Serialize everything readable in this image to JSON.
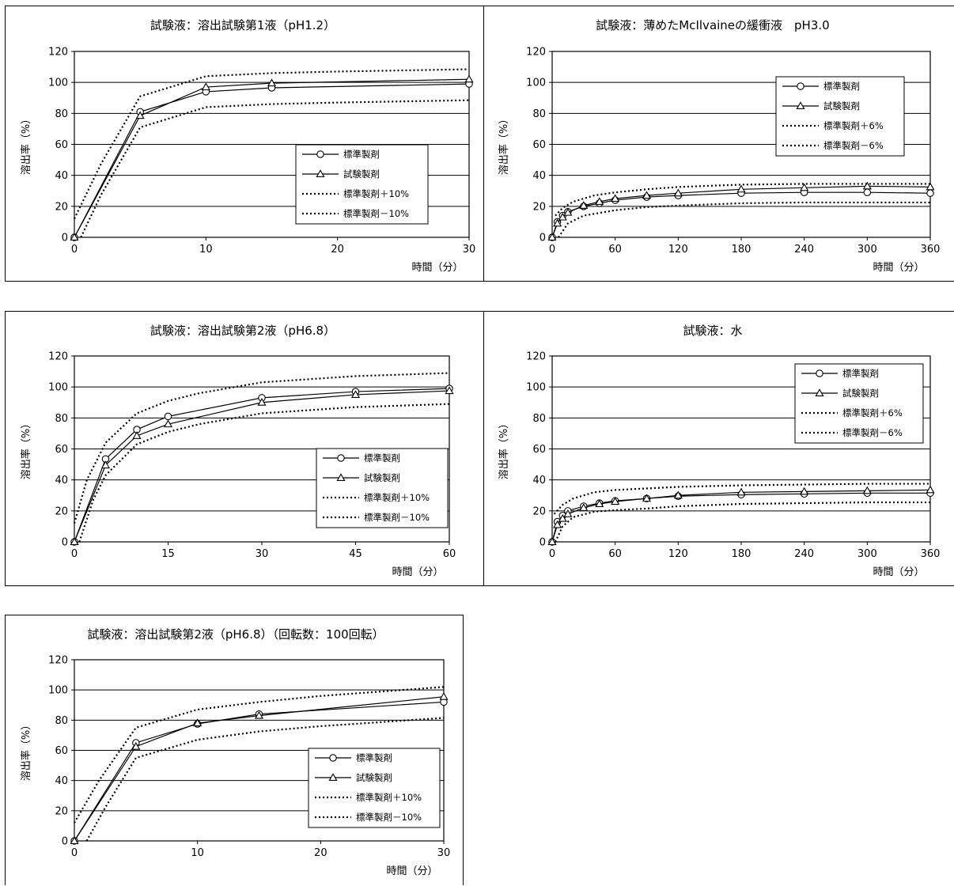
{
  "chart_data": [
    {
      "type": "line",
      "title": "試験液：溶出試験第1液（pH1.2）",
      "xlabel": "時間（分）",
      "ylabel": "溶出率（%）",
      "xlim": [
        0,
        30
      ],
      "ylim": [
        0,
        120
      ],
      "xticks": [
        0,
        10,
        20,
        30
      ],
      "yticks": [
        0,
        20,
        40,
        60,
        80,
        100,
        120
      ],
      "legend_position": "bottom-right",
      "grid": true,
      "series": [
        {
          "name": "標準製剤",
          "marker": "circle",
          "style": "solid",
          "x": [
            0,
            5,
            10,
            15,
            30
          ],
          "y": [
            0,
            81,
            94,
            96.5,
            99
          ]
        },
        {
          "name": "試験製剤",
          "marker": "triangle",
          "style": "solid",
          "x": [
            0,
            5,
            10,
            15,
            30
          ],
          "y": [
            0,
            78.5,
            97,
            99.5,
            102
          ]
        },
        {
          "name": "標準製剤＋10%",
          "marker": "none",
          "style": "dotted",
          "x": [
            0,
            2,
            5,
            10,
            15,
            20,
            30
          ],
          "y": [
            12,
            47,
            91,
            104,
            106,
            107,
            108.5
          ]
        },
        {
          "name": "標準製剤－10%",
          "marker": "none",
          "style": "dotted",
          "x": [
            0.5,
            2,
            5,
            10,
            15,
            20,
            30
          ],
          "y": [
            0,
            27,
            71,
            84,
            86,
            87,
            88.5
          ]
        }
      ]
    },
    {
      "type": "line",
      "title": "試験液：薄めたMcIlvaineの緩衝液　pH3.0",
      "xlabel": "時間（分）",
      "ylabel": "溶出率（%）",
      "xlim": [
        0,
        360
      ],
      "ylim": [
        0,
        120
      ],
      "xticks": [
        0,
        60,
        120,
        180,
        240,
        300,
        360
      ],
      "yticks": [
        0,
        20,
        40,
        60,
        80,
        100,
        120
      ],
      "legend_position": "top-right",
      "grid": true,
      "series": [
        {
          "name": "標準製剤",
          "marker": "circle",
          "style": "solid",
          "x": [
            0,
            5,
            10,
            15,
            30,
            45,
            60,
            90,
            120,
            180,
            240,
            300,
            360
          ],
          "y": [
            0,
            10,
            14,
            16.5,
            20,
            22,
            24,
            26,
            27,
            28.5,
            29,
            29,
            28.5
          ]
        },
        {
          "name": "試験製剤",
          "marker": "triangle",
          "style": "solid",
          "x": [
            0,
            5,
            10,
            15,
            30,
            45,
            60,
            90,
            120,
            180,
            240,
            300,
            360
          ],
          "y": [
            0,
            9,
            13,
            16,
            20.5,
            23,
            25,
            27,
            28.5,
            31,
            32,
            33,
            32.5
          ]
        },
        {
          "name": "標準製剤＋6%",
          "marker": "none",
          "style": "dotted",
          "x": [
            3,
            10,
            20,
            40,
            60,
            90,
            120,
            180,
            240,
            300,
            360
          ],
          "y": [
            14,
            19,
            23,
            27,
            29,
            31,
            32.5,
            34,
            34.5,
            34.5,
            34.5
          ]
        },
        {
          "name": "標準製剤－6%",
          "marker": "none",
          "style": "dotted",
          "x": [
            6,
            15,
            30,
            60,
            90,
            120,
            180,
            240,
            300,
            360
          ],
          "y": [
            0,
            9,
            14,
            17.5,
            19.5,
            20.5,
            22,
            22.5,
            22.5,
            22.5
          ]
        }
      ]
    },
    {
      "type": "line",
      "title": "試験液：溶出試験第2液（pH6.8）",
      "xlabel": "時間（分）",
      "ylabel": "溶出率（%）",
      "xlim": [
        0,
        60
      ],
      "ylim": [
        0,
        120
      ],
      "xticks": [
        0,
        15,
        30,
        45,
        60
      ],
      "yticks": [
        0,
        20,
        40,
        60,
        80,
        100,
        120
      ],
      "legend_position": "bottom-right",
      "grid": true,
      "series": [
        {
          "name": "標準製剤",
          "marker": "circle",
          "style": "solid",
          "x": [
            0,
            5,
            10,
            15,
            30,
            45,
            60
          ],
          "y": [
            0,
            53.5,
            72.5,
            81,
            93,
            97,
            99
          ]
        },
        {
          "name": "試験製剤",
          "marker": "triangle",
          "style": "solid",
          "x": [
            0,
            5,
            10,
            15,
            30,
            45,
            60
          ],
          "y": [
            0,
            49.5,
            68.5,
            76,
            90,
            95,
            97.5
          ]
        },
        {
          "name": "標準製剤＋10%",
          "marker": "none",
          "style": "dotted",
          "x": [
            0,
            2,
            5,
            10,
            15,
            20,
            30,
            45,
            60
          ],
          "y": [
            12,
            40,
            64,
            83,
            91,
            96,
            103,
            107,
            109
          ]
        },
        {
          "name": "標準製剤－10%",
          "marker": "none",
          "style": "dotted",
          "x": [
            0.8,
            3,
            5,
            10,
            15,
            20,
            30,
            45,
            60
          ],
          "y": [
            0,
            27,
            43,
            63,
            71,
            76,
            83,
            87,
            89
          ]
        }
      ]
    },
    {
      "type": "line",
      "title": "試験液：水",
      "xlabel": "時間（分）",
      "ylabel": "溶出率（%）",
      "xlim": [
        0,
        360
      ],
      "ylim": [
        0,
        120
      ],
      "xticks": [
        0,
        60,
        120,
        180,
        240,
        300,
        360
      ],
      "yticks": [
        0,
        20,
        40,
        60,
        80,
        100,
        120
      ],
      "legend_position": "top-right",
      "grid": true,
      "series": [
        {
          "name": "標準製剤",
          "marker": "circle",
          "style": "solid",
          "x": [
            0,
            5,
            10,
            15,
            30,
            45,
            60,
            90,
            120,
            180,
            240,
            300,
            360
          ],
          "y": [
            0,
            13,
            17,
            20,
            23,
            25,
            26.5,
            28,
            29.5,
            30.5,
            31,
            31.5,
            31.5
          ]
        },
        {
          "name": "試験製剤",
          "marker": "triangle",
          "style": "solid",
          "x": [
            0,
            5,
            10,
            15,
            30,
            45,
            60,
            90,
            120,
            180,
            240,
            300,
            360
          ],
          "y": [
            0,
            11,
            15,
            18,
            22,
            24.5,
            26,
            28,
            30,
            32,
            32.5,
            33,
            33.5
          ]
        },
        {
          "name": "標準製剤＋6%",
          "marker": "none",
          "style": "dotted",
          "x": [
            2,
            10,
            20,
            40,
            60,
            90,
            120,
            180,
            240,
            300,
            360
          ],
          "y": [
            18,
            24,
            28,
            32,
            33.5,
            34.5,
            35.5,
            36.5,
            37,
            37.5,
            37.5
          ]
        },
        {
          "name": "標準製剤－6%",
          "marker": "none",
          "style": "dotted",
          "x": [
            3,
            10,
            20,
            40,
            60,
            90,
            120,
            180,
            240,
            300,
            360
          ],
          "y": [
            0,
            10,
            16,
            19.5,
            20.5,
            21.5,
            23,
            24.5,
            25,
            25.5,
            25.5
          ]
        }
      ]
    },
    {
      "type": "line",
      "title": "試験液：溶出試験第2液（pH6.8）（回転数：100回転）",
      "xlabel": "時間（分）",
      "ylabel": "溶出率（%）",
      "xlim": [
        0,
        30
      ],
      "ylim": [
        0,
        120
      ],
      "xticks": [
        0,
        10,
        20,
        30
      ],
      "yticks": [
        0,
        20,
        40,
        60,
        80,
        100,
        120
      ],
      "legend_position": "bottom-right",
      "grid": true,
      "series": [
        {
          "name": "標準製剤",
          "marker": "circle",
          "style": "solid",
          "x": [
            0,
            5,
            10,
            15,
            30
          ],
          "y": [
            0,
            65,
            77.5,
            84,
            92
          ]
        },
        {
          "name": "試験製剤",
          "marker": "triangle",
          "style": "solid",
          "x": [
            0,
            5,
            10,
            15,
            30
          ],
          "y": [
            0,
            62.5,
            78,
            83,
            95.5
          ]
        },
        {
          "name": "標準製剤＋10%",
          "marker": "none",
          "style": "dotted",
          "x": [
            0,
            2,
            5,
            10,
            15,
            20,
            30
          ],
          "y": [
            12,
            40,
            75,
            87,
            92,
            96,
            102
          ]
        },
        {
          "name": "標準製剤－10%",
          "marker": "none",
          "style": "dotted",
          "x": [
            1,
            2.5,
            5,
            10,
            15,
            20,
            30
          ],
          "y": [
            0,
            22,
            55,
            67,
            72.5,
            76,
            81.5
          ]
        }
      ]
    }
  ]
}
